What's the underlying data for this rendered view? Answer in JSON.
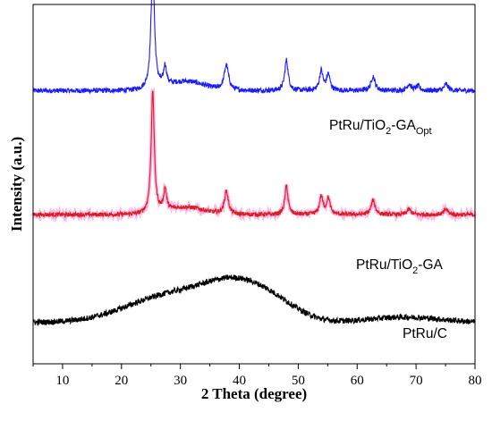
{
  "chart_data": {
    "type": "line",
    "xlabel": "2 Theta (degree)",
    "ylabel": "Intensity (a.u.)",
    "xlim": [
      5,
      80
    ],
    "xticks": [
      10,
      20,
      30,
      40,
      50,
      60,
      70,
      80
    ],
    "yticks_shown": false,
    "ylim": [
      0,
      10
    ],
    "grid": false,
    "series": [
      {
        "label_main": "PtRu/TiO",
        "label_sub": "2",
        "label_mid": "-GA",
        "label_sub2": "Opt",
        "color": "#1a1aff",
        "baseline": 7.6,
        "noise": 0.07,
        "peaks": [
          {
            "pos": 25.3,
            "height": 3.4,
            "width": 0.35
          },
          {
            "pos": 27.4,
            "height": 0.55,
            "width": 0.3
          },
          {
            "pos": 31.0,
            "height": 0.25,
            "width": 3.0
          },
          {
            "pos": 37.8,
            "height": 0.7,
            "width": 0.45
          },
          {
            "pos": 48.0,
            "height": 0.85,
            "width": 0.35
          },
          {
            "pos": 53.9,
            "height": 0.55,
            "width": 0.35
          },
          {
            "pos": 55.1,
            "height": 0.45,
            "width": 0.35
          },
          {
            "pos": 62.7,
            "height": 0.4,
            "width": 0.4
          },
          {
            "pos": 68.8,
            "height": 0.18,
            "width": 0.4
          },
          {
            "pos": 70.3,
            "height": 0.12,
            "width": 0.4
          },
          {
            "pos": 75.1,
            "height": 0.18,
            "width": 0.4
          }
        ]
      },
      {
        "label_main": "PtRu/TiO",
        "label_sub": "2",
        "label_mid": "-GA",
        "label_sub2": "",
        "color": "#d42020",
        "shadow": "#ff9be0",
        "baseline": 4.15,
        "noise": 0.06,
        "peaks": [
          {
            "pos": 25.3,
            "height": 3.4,
            "width": 0.32
          },
          {
            "pos": 27.4,
            "height": 0.6,
            "width": 0.3
          },
          {
            "pos": 31.0,
            "height": 0.2,
            "width": 3.0
          },
          {
            "pos": 37.8,
            "height": 0.65,
            "width": 0.4
          },
          {
            "pos": 48.0,
            "height": 0.8,
            "width": 0.32
          },
          {
            "pos": 53.9,
            "height": 0.5,
            "width": 0.35
          },
          {
            "pos": 55.1,
            "height": 0.45,
            "width": 0.35
          },
          {
            "pos": 62.7,
            "height": 0.4,
            "width": 0.4
          },
          {
            "pos": 68.8,
            "height": 0.15,
            "width": 0.4
          },
          {
            "pos": 75.1,
            "height": 0.15,
            "width": 0.4
          }
        ]
      },
      {
        "label_main": "PtRu/C",
        "label_sub": "",
        "label_mid": "",
        "label_sub2": "",
        "color": "#000000",
        "baseline": 1.15,
        "noise": 0.08,
        "peaks": [
          {
            "pos": 28.5,
            "height": 0.75,
            "width": 7.5
          },
          {
            "pos": 40.0,
            "height": 0.95,
            "width": 5.5
          },
          {
            "pos": 47.0,
            "height": 0.25,
            "width": 4.0
          },
          {
            "pos": 68.0,
            "height": 0.15,
            "width": 6.0
          }
        ]
      }
    ]
  }
}
